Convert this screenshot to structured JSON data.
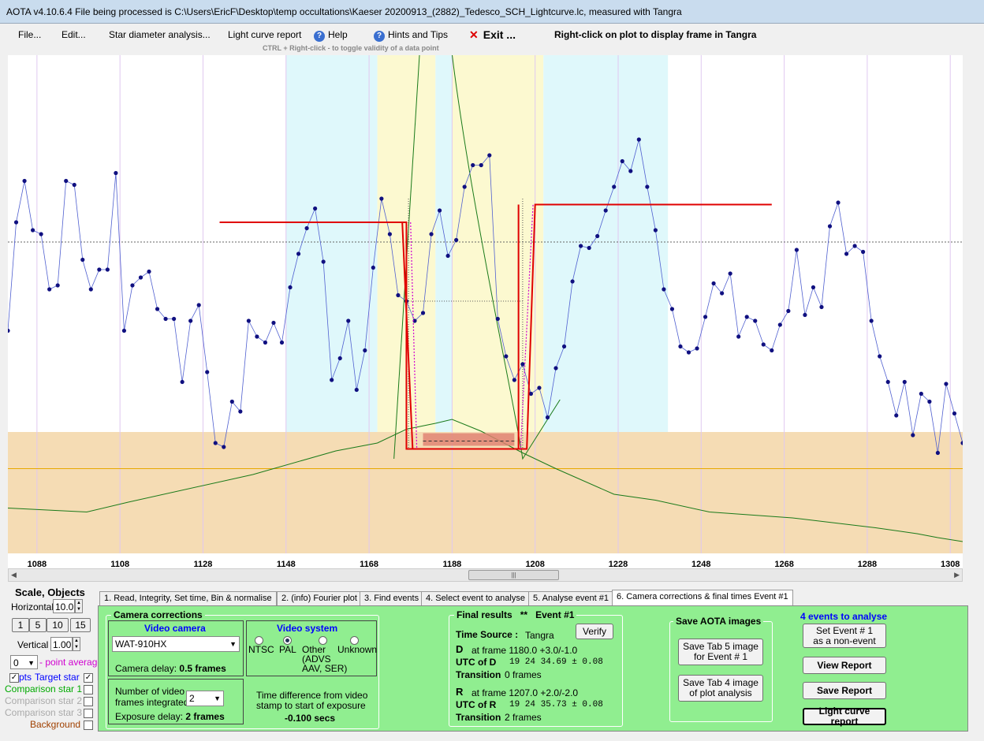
{
  "title": "AOTA v4.10.6.4    File being processed is C:\\Users\\EricF\\Desktop\\temp occultations\\Kaeser 20200913_(2882)_Tedesco_SCH_Lightcurve.lc, measured with Tangra",
  "menu": {
    "file": "File...",
    "edit": "Edit...",
    "star_diam": "Star diameter analysis...",
    "lc_report": "Light curve report",
    "help": "Help",
    "hints": "Hints and Tips",
    "exit": "Exit ...",
    "right_click_hint": "Right-click on plot to display frame in Tangra",
    "ctrl_hint": "CTRL + Right-click  -  to toggle validity of a data point"
  },
  "chart_data": {
    "type": "line",
    "xlim": [
      1081,
      1311
    ],
    "ticks": [
      1088,
      1108,
      1128,
      1148,
      1168,
      1188,
      1208,
      1228,
      1248,
      1268,
      1288,
      1308
    ],
    "target_star": [
      [
        1081,
        95
      ],
      [
        1083,
        150
      ],
      [
        1085,
        171
      ],
      [
        1087,
        146
      ],
      [
        1089,
        144
      ],
      [
        1091,
        116
      ],
      [
        1093,
        118
      ],
      [
        1095,
        171
      ],
      [
        1097,
        169
      ],
      [
        1099,
        131
      ],
      [
        1101,
        116
      ],
      [
        1103,
        126
      ],
      [
        1105,
        126
      ],
      [
        1107,
        175
      ],
      [
        1109,
        95
      ],
      [
        1111,
        118
      ],
      [
        1113,
        122
      ],
      [
        1115,
        125
      ],
      [
        1117,
        106
      ],
      [
        1119,
        101
      ],
      [
        1121,
        101
      ],
      [
        1123,
        69
      ],
      [
        1125,
        100
      ],
      [
        1127,
        108
      ],
      [
        1129,
        74
      ],
      [
        1131,
        38
      ],
      [
        1133,
        36
      ],
      [
        1135,
        59
      ],
      [
        1137,
        54
      ],
      [
        1139,
        100
      ],
      [
        1141,
        92
      ],
      [
        1143,
        89
      ],
      [
        1145,
        99
      ],
      [
        1147,
        89
      ],
      [
        1149,
        117
      ],
      [
        1151,
        134
      ],
      [
        1153,
        147
      ],
      [
        1155,
        157
      ],
      [
        1157,
        130
      ],
      [
        1159,
        70
      ],
      [
        1161,
        81
      ],
      [
        1163,
        100
      ],
      [
        1165,
        65
      ],
      [
        1167,
        85
      ],
      [
        1169,
        127
      ],
      [
        1171,
        162
      ],
      [
        1173,
        144
      ],
      [
        1175,
        113
      ],
      [
        1177,
        110
      ],
      [
        1179,
        100
      ],
      [
        1181,
        104
      ],
      [
        1183,
        144
      ],
      [
        1185,
        156
      ],
      [
        1187,
        133
      ],
      [
        1189,
        141
      ],
      [
        1191,
        168
      ],
      [
        1193,
        179
      ],
      [
        1195,
        179
      ],
      [
        1197,
        184
      ],
      [
        1199,
        101
      ],
      [
        1201,
        82
      ],
      [
        1203,
        70
      ],
      [
        1205,
        78
      ],
      [
        1207,
        63
      ],
      [
        1209,
        66
      ],
      [
        1211,
        51
      ],
      [
        1213,
        76
      ],
      [
        1215,
        87
      ],
      [
        1217,
        120
      ],
      [
        1219,
        138
      ],
      [
        1221,
        137
      ],
      [
        1223,
        143
      ],
      [
        1225,
        156
      ],
      [
        1227,
        168
      ],
      [
        1229,
        181
      ],
      [
        1231,
        176
      ],
      [
        1233,
        192
      ],
      [
        1235,
        168
      ],
      [
        1237,
        146
      ],
      [
        1239,
        116
      ],
      [
        1241,
        106
      ],
      [
        1243,
        87
      ],
      [
        1245,
        84
      ],
      [
        1247,
        86
      ],
      [
        1249,
        102
      ],
      [
        1251,
        119
      ],
      [
        1253,
        114
      ],
      [
        1255,
        124
      ],
      [
        1257,
        92
      ],
      [
        1259,
        102
      ],
      [
        1261,
        100
      ],
      [
        1263,
        88
      ],
      [
        1265,
        85
      ],
      [
        1267,
        98
      ],
      [
        1269,
        105
      ],
      [
        1271,
        136
      ],
      [
        1273,
        103
      ],
      [
        1275,
        117
      ],
      [
        1277,
        107
      ],
      [
        1279,
        148
      ],
      [
        1281,
        160
      ],
      [
        1283,
        134
      ],
      [
        1285,
        138
      ],
      [
        1287,
        135
      ],
      [
        1289,
        100
      ],
      [
        1291,
        82
      ],
      [
        1293,
        69
      ],
      [
        1295,
        52
      ],
      [
        1297,
        69
      ],
      [
        1299,
        42
      ],
      [
        1301,
        63
      ],
      [
        1303,
        59
      ],
      [
        1305,
        33
      ],
      [
        1307,
        68
      ],
      [
        1309,
        53
      ],
      [
        1311,
        38
      ]
    ],
    "comparison_star": [
      [
        1081,
        5
      ],
      [
        1100,
        3
      ],
      [
        1110,
        8
      ],
      [
        1140,
        22
      ],
      [
        1160,
        34
      ],
      [
        1170,
        38
      ],
      [
        1177,
        45
      ],
      [
        1184,
        48
      ],
      [
        1188,
        50
      ],
      [
        1195,
        44
      ],
      [
        1205,
        33
      ],
      [
        1213,
        25
      ],
      [
        1227,
        12
      ],
      [
        1237,
        9
      ],
      [
        1250,
        3
      ],
      [
        1270,
        0
      ],
      [
        1290,
        -5
      ],
      [
        1300,
        -8
      ],
      [
        1305,
        -10
      ],
      [
        1311,
        -12
      ]
    ],
    "model": {
      "D_frame": 1180.0,
      "R_frame": 1207.0,
      "upper": 150,
      "lower": 35,
      "post_upper": 159
    },
    "reference_lines": {
      "mean": 140,
      "zero": 25
    }
  },
  "left_panel": {
    "scale_objects": "Scale,  Objects",
    "horizontal": "Horizontal",
    "horizontal_val": "10.0",
    "vertical": "Vertical",
    "vertical_val": "1.00",
    "scale_btns": [
      "1",
      "5",
      "10",
      "15"
    ],
    "avg_val": "0",
    "avg_label": "- point average",
    "pts": "pts",
    "target": "Target star",
    "comp1": "Comparison star 1",
    "comp2": "Comparison star 2",
    "comp3": "Comparison star 3",
    "background": "Background"
  },
  "tabs": [
    "1.  Read, Integrity, Set time, Bin & normalise",
    "2. (info)  Fourier plot",
    "3. Find events",
    "4. Select event to analyse",
    "5. Analyse event #1",
    "6. Camera corrections & final times Event #1"
  ],
  "camera": {
    "group": "Camera corrections",
    "video_camera": "Video camera",
    "camera_model": "WAT-910HX",
    "delay_label": "Camera delay:",
    "delay_val": "0.5 frames",
    "video_system": "Video system",
    "ntsc": "NTSC",
    "pal": "PAL",
    "other": "Other",
    "unknown": "Unknown",
    "other_sub1": "(ADVS",
    "other_sub2": "AAV, SER)",
    "num_frames1": "Number of video",
    "num_frames2": "frames integrated",
    "num_frames_val": "2",
    "exp_delay_label": "Exposure delay:",
    "exp_delay_val": "2 frames",
    "time_diff1": "Time difference from video",
    "time_diff2": "stamp to start of exposure",
    "time_diff_val": "-0.100 secs"
  },
  "final": {
    "group": "Final results",
    "event": "Event #1",
    "marks": "**",
    "time_source_label": "Time Source :",
    "time_source": "Tangra",
    "verify": "Verify",
    "d_letter": "D",
    "d_text": "at frame 1180.0  +3.0/-1.0",
    "utc_d_label": "UTC of D",
    "utc_d": "19 24 34.69  ± 0.08",
    "trans_label": "Transition",
    "trans_d": "0 frames",
    "r_letter": "R",
    "r_text": "at frame 1207.0  +2.0/-2.0",
    "utc_r_label": "UTC of R",
    "utc_r": "19 24 35.73  ± 0.08",
    "trans_r": "2 frames"
  },
  "save": {
    "group": "Save AOTA images",
    "tab5": "Save Tab 5 image",
    "tab5b": "for Event # 1",
    "tab4": "Save Tab 4 image",
    "tab4b": "of plot analysis"
  },
  "events": {
    "count": "4  events to analyse",
    "set1": "Set Event # 1",
    "set1b": "as a non-event",
    "view": "View Report",
    "save": "Save Report",
    "lc": "Light curve report"
  }
}
